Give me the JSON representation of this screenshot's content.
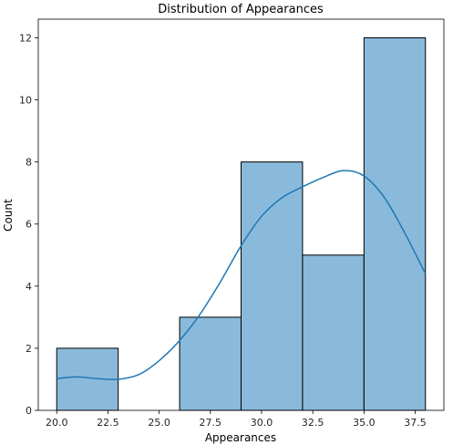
{
  "chart_data": {
    "type": "bar",
    "subtype": "histogram",
    "title": "Distribution of Appearances",
    "xlabel": "Appearances",
    "ylabel": "Count",
    "xlim": [
      19.1,
      38.9
    ],
    "ylim": [
      0,
      12.6
    ],
    "xticks": [
      20.0,
      22.5,
      25.0,
      27.5,
      30.0,
      32.5,
      35.0,
      37.5
    ],
    "xtick_labels": [
      "20.0",
      "22.5",
      "25.0",
      "27.5",
      "30.0",
      "32.5",
      "35.0",
      "37.5"
    ],
    "yticks": [
      0,
      2,
      4,
      6,
      8,
      10,
      12
    ],
    "ytick_labels": [
      "0",
      "2",
      "4",
      "6",
      "8",
      "10",
      "12"
    ],
    "bins": [
      {
        "x0": 20.0,
        "x1": 23.0,
        "count": 2
      },
      {
        "x0": 23.0,
        "x1": 26.0,
        "count": 0
      },
      {
        "x0": 26.0,
        "x1": 29.0,
        "count": 3
      },
      {
        "x0": 29.0,
        "x1": 32.0,
        "count": 8
      },
      {
        "x0": 32.0,
        "x1": 35.0,
        "count": 5
      },
      {
        "x0": 35.0,
        "x1": 38.0,
        "count": 12
      }
    ],
    "kde": {
      "x": [
        20.0,
        21.0,
        22.0,
        23.0,
        24.0,
        25.0,
        26.0,
        27.0,
        28.0,
        29.0,
        30.0,
        31.0,
        32.0,
        33.0,
        34.0,
        35.0,
        36.0,
        37.0,
        38.0
      ],
      "y": [
        1.02,
        1.08,
        1.02,
        1.0,
        1.15,
        1.6,
        2.25,
        3.1,
        4.15,
        5.3,
        6.25,
        6.85,
        7.2,
        7.5,
        7.72,
        7.55,
        6.85,
        5.7,
        4.4
      ]
    },
    "bar_fill": "#8abadb",
    "bar_edge": "#000000",
    "line_color": "#1f77b4",
    "grid": false,
    "legend": "none"
  }
}
